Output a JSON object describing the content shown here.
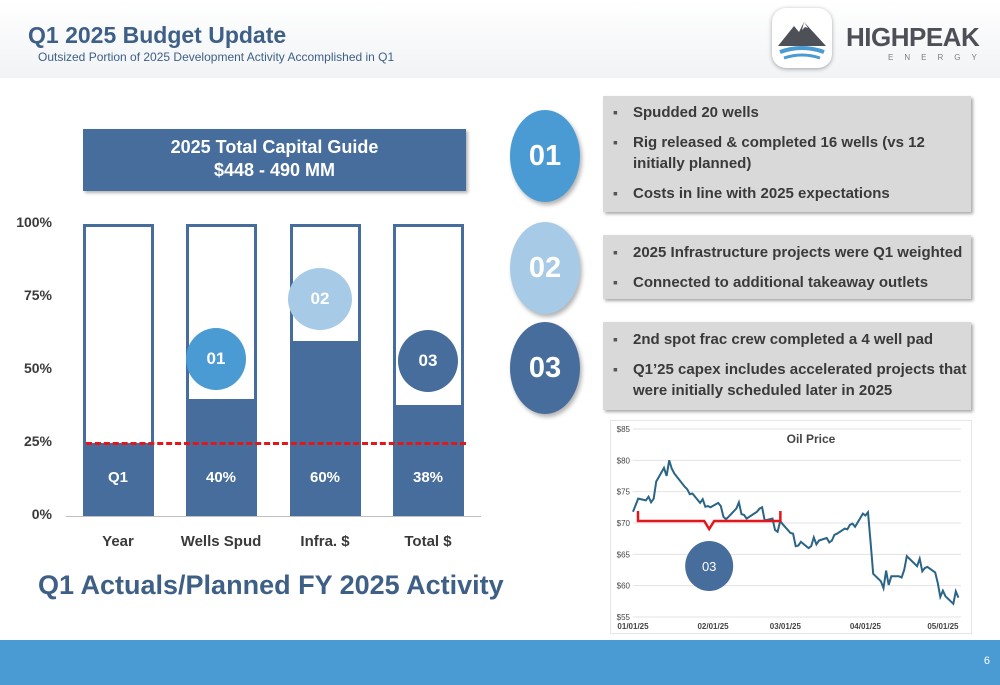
{
  "header": {
    "title": "Q1 2025 Budget Update",
    "subtitle": "Outsized Portion of 2025 Development Activity Accomplished in Q1"
  },
  "logo": {
    "name": "HIGHPEAK",
    "sub": "ENERGY",
    "icon": "mountain-logo-icon",
    "colors": {
      "dark": "#4d5056",
      "accent": "#4a9ad3"
    }
  },
  "colors": {
    "primary": "#466d9c",
    "accent": "#4a9ad3",
    "light": "#a7cbe6",
    "dashed_line": "#e3171b",
    "oil_line": "#2a6486",
    "brace": "#e3171b",
    "panel_bg": "#d9d9d9",
    "footer": "#4a9ad3"
  },
  "guide": {
    "line1": "2025 Total Capital Guide",
    "line2": "$448 - 490 MM"
  },
  "chart_data": [
    {
      "type": "bar",
      "categories": [
        "Year",
        "Wells Spud",
        "Infra. $",
        "Total $"
      ],
      "values": [
        25,
        40,
        60,
        38
      ],
      "data_labels": [
        "Q1",
        "40%",
        "60%",
        "38%"
      ],
      "y_ticks": [
        "0%",
        "25%",
        "50%",
        "75%",
        "100%"
      ],
      "ylim": [
        0,
        100
      ],
      "reference_line": {
        "value": 25,
        "style": "dashed"
      },
      "markers": [
        {
          "label": "01",
          "category": "Wells Spud"
        },
        {
          "label": "02",
          "category": "Infra. $"
        },
        {
          "label": "03",
          "category": "Total $"
        }
      ],
      "title": "Q1 Actuals/Planned FY 2025 Activity"
    },
    {
      "type": "line",
      "title": "Oil Price",
      "y_ticks": [
        "$55",
        "$60",
        "$65",
        "$70",
        "$75",
        "$80",
        "$85"
      ],
      "ylim": [
        55,
        85
      ],
      "x_ticks": [
        "01/01/25",
        "02/01/25",
        "03/01/25",
        "04/01/25",
        "05/01/25"
      ],
      "xlim": [
        "2025-01-01",
        "2025-05-08"
      ],
      "series": [
        {
          "points": [
            [
              "2025-01-01",
              71.8
            ],
            [
              "2025-01-03",
              73.9
            ],
            [
              "2025-01-06",
              73.6
            ],
            [
              "2025-01-07",
              74.2
            ],
            [
              "2025-01-08",
              73.3
            ],
            [
              "2025-01-09",
              73.9
            ],
            [
              "2025-01-10",
              76.6
            ],
            [
              "2025-01-13",
              78.8
            ],
            [
              "2025-01-14",
              77.5
            ],
            [
              "2025-01-15",
              80.0
            ],
            [
              "2025-01-16",
              78.7
            ],
            [
              "2025-01-17",
              77.9
            ],
            [
              "2025-01-21",
              75.8
            ],
            [
              "2025-01-22",
              75.4
            ],
            [
              "2025-01-23",
              74.6
            ],
            [
              "2025-01-24",
              74.7
            ],
            [
              "2025-01-27",
              73.2
            ],
            [
              "2025-01-28",
              73.8
            ],
            [
              "2025-01-29",
              72.6
            ],
            [
              "2025-01-30",
              72.7
            ],
            [
              "2025-01-31",
              72.5
            ],
            [
              "2025-02-03",
              73.2
            ],
            [
              "2025-02-04",
              72.7
            ],
            [
              "2025-02-05",
              71.0
            ],
            [
              "2025-02-06",
              70.6
            ],
            [
              "2025-02-07",
              71.0
            ],
            [
              "2025-02-10",
              72.3
            ],
            [
              "2025-02-11",
              73.3
            ],
            [
              "2025-02-12",
              71.4
            ],
            [
              "2025-02-13",
              71.3
            ],
            [
              "2025-02-14",
              70.7
            ],
            [
              "2025-02-18",
              71.8
            ],
            [
              "2025-02-19",
              72.3
            ],
            [
              "2025-02-20",
              72.5
            ],
            [
              "2025-02-21",
              70.4
            ],
            [
              "2025-02-24",
              70.7
            ],
            [
              "2025-02-25",
              68.9
            ],
            [
              "2025-02-26",
              68.6
            ],
            [
              "2025-02-27",
              70.3
            ],
            [
              "2025-02-28",
              69.8
            ],
            [
              "2025-03-03",
              68.4
            ],
            [
              "2025-03-04",
              68.3
            ],
            [
              "2025-03-05",
              66.3
            ],
            [
              "2025-03-06",
              66.4
            ],
            [
              "2025-03-07",
              67.0
            ],
            [
              "2025-03-10",
              66.0
            ],
            [
              "2025-03-11",
              66.3
            ],
            [
              "2025-03-12",
              67.7
            ],
            [
              "2025-03-13",
              66.6
            ],
            [
              "2025-03-14",
              67.2
            ],
            [
              "2025-03-17",
              67.6
            ],
            [
              "2025-03-18",
              66.9
            ],
            [
              "2025-03-19",
              67.2
            ],
            [
              "2025-03-20",
              68.1
            ],
            [
              "2025-03-21",
              68.3
            ],
            [
              "2025-03-24",
              69.1
            ],
            [
              "2025-03-25",
              69.0
            ],
            [
              "2025-03-26",
              69.7
            ],
            [
              "2025-03-27",
              69.9
            ],
            [
              "2025-03-28",
              69.4
            ],
            [
              "2025-03-31",
              71.5
            ],
            [
              "2025-04-01",
              71.2
            ],
            [
              "2025-04-02",
              71.7
            ],
            [
              "2025-04-03",
              66.9
            ],
            [
              "2025-04-04",
              61.9
            ],
            [
              "2025-04-07",
              60.7
            ],
            [
              "2025-04-08",
              59.6
            ],
            [
              "2025-04-09",
              62.4
            ],
            [
              "2025-04-10",
              60.1
            ],
            [
              "2025-04-11",
              61.5
            ],
            [
              "2025-04-14",
              61.5
            ],
            [
              "2025-04-15",
              61.3
            ],
            [
              "2025-04-16",
              62.5
            ],
            [
              "2025-04-17",
              64.7
            ],
            [
              "2025-04-21",
              63.1
            ],
            [
              "2025-04-22",
              64.3
            ],
            [
              "2025-04-23",
              62.3
            ],
            [
              "2025-04-24",
              62.8
            ],
            [
              "2025-04-25",
              63.0
            ],
            [
              "2025-04-28",
              62.1
            ],
            [
              "2025-04-29",
              60.4
            ],
            [
              "2025-04-30",
              58.2
            ],
            [
              "2025-05-01",
              59.2
            ],
            [
              "2025-05-02",
              58.3
            ],
            [
              "2025-05-05",
              57.1
            ],
            [
              "2025-05-06",
              59.1
            ],
            [
              "2025-05-07",
              58.1
            ]
          ]
        }
      ],
      "brace": {
        "from": "2025-01-01",
        "to": "2025-03-01",
        "label": "03"
      }
    }
  ],
  "panels": [
    {
      "num": "01",
      "color": "#4a9ad3",
      "bullets": [
        "Spudded 20 wells",
        "Rig released & completed 16 wells (vs 12 initially planned)",
        "Costs in line with 2025 expectations"
      ]
    },
    {
      "num": "02",
      "color": "#a7cbe6",
      "bullets": [
        "2025 Infrastructure projects were Q1 weighted",
        "Connected to additional takeaway outlets"
      ]
    },
    {
      "num": "03",
      "color": "#466d9c",
      "bullets": [
        "2nd spot frac crew completed a 4 well pad",
        "Q1’25 capex includes accelerated projects that were initially scheduled later in 2025"
      ]
    }
  ],
  "footer": {
    "page": "6"
  }
}
